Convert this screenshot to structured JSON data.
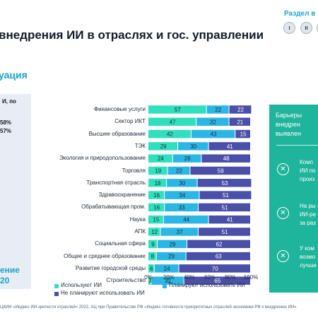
{
  "header": {
    "section_nav_label": "Раздел в",
    "sections": [
      "I",
      "II",
      "I"
    ],
    "title": "внедрения ИИ в отраслях и гос. управлении",
    "subtitle": "уация"
  },
  "left_panel": {
    "heading": "И, по",
    "stat_1": "58%",
    "stat_2": "57%",
    "big_line_1": "ение",
    "big_line_2": "20"
  },
  "right_panel": {
    "title_lines": [
      "Барьеры",
      "внедрен",
      "выявлен"
    ],
    "items": [
      [
        "Комп",
        "ИИ по",
        "произ"
      ],
      [
        "На ры",
        "ИИ-ре",
        "за раз"
      ],
      [
        "У ком",
        "возмо",
        "лучши"
      ]
    ]
  },
  "chart_data": {
    "type": "bar",
    "orientation": "horizontal",
    "stacked": true,
    "categories": [
      "Финансовые услуги",
      "Сектор ИКТ",
      "Высшее образование",
      "ТЭК",
      "Экология и природопользование",
      "Торговля",
      "Транспортная отрасль",
      "Здравоохранение",
      "Обрабатывающая пром.",
      "Наука",
      "АПК",
      "Социальная сфера",
      "Общее и среднее образование",
      "Развитие городской среды",
      "Строительство"
    ],
    "series": [
      {
        "name": "Используют ИИ",
        "color": "#2ee0bd",
        "values": [
          57,
          47,
          42,
          29,
          24,
          19,
          18,
          16,
          16,
          15,
          12,
          9,
          8,
          6,
          3
        ]
      },
      {
        "name": "Планируют использовать ИИ",
        "color": "#2bb6e6",
        "values": [
          22,
          32,
          43,
          30,
          28,
          22,
          30,
          34,
          33,
          44,
          37,
          29,
          29,
          24,
          32
        ]
      },
      {
        "name": "Не планируют использовать ИИ",
        "color": "#4a4fa8",
        "values": [
          22,
          21,
          15,
          41,
          48,
          59,
          53,
          51,
          51,
          41,
          51,
          62,
          63,
          70,
          65
        ]
      }
    ],
    "xlim": [
      0,
      100
    ],
    "xticks": [
      "0%",
      "20%",
      "40%",
      "60%",
      "80%",
      "100%"
    ],
    "legend_position": "bottom"
  },
  "footer": {
    "source": "ЦКИИ «Индекс ИИ-зрелости отраслей» 2022, АЦ при Правительстве РФ «Индекс готовности приоритетных отраслей экономики РФ к внедрению ИИ»"
  }
}
